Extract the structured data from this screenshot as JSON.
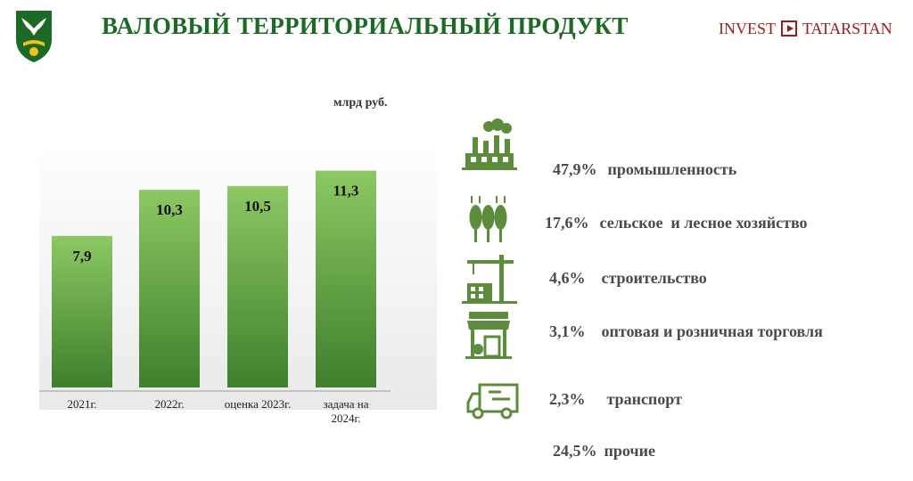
{
  "header": {
    "title": "ВАЛОВЫЙ ТЕРРИТОРИАЛЬНЫЙ ПРОДУКТ",
    "brand_left": "INVEST",
    "brand_right": "TATARSTAN",
    "logo_icon": "municipal-crest-icon"
  },
  "colors": {
    "title": "#1c6a26",
    "brand": "#9a1b1f",
    "bar_top": "#8cc863",
    "bar_bottom": "#3f7f2d",
    "icon": "#5d8c3d"
  },
  "chart_data": {
    "type": "bar",
    "unit_label": "млрд руб.",
    "categories": [
      "2021г.",
      "2022г.",
      "оценка 2023г.",
      "задача на 2024г."
    ],
    "values": [
      7.9,
      10.3,
      10.5,
      11.3
    ],
    "value_labels": [
      "7,9",
      "10,3",
      "10,5",
      "11,3"
    ],
    "ylim": [
      0,
      13
    ],
    "grid": false,
    "legend": "none"
  },
  "sectors": [
    {
      "pct": "47,9%",
      "label": "промышленность",
      "icon": "factory-icon"
    },
    {
      "pct": "17,6%",
      "label": "сельское  и лесное хозяйство",
      "icon": "wheat-icon"
    },
    {
      "pct": "4,6%",
      "label": "строительство",
      "icon": "construction-crane-icon"
    },
    {
      "pct": "3,1%",
      "label": "оптовая и розничная торговля",
      "icon": "storefront-icon"
    },
    {
      "pct": "2,3%",
      "label": "транспорт",
      "icon": "truck-icon"
    },
    {
      "pct": "24,5%",
      "label": "прочие",
      "icon": ""
    }
  ]
}
